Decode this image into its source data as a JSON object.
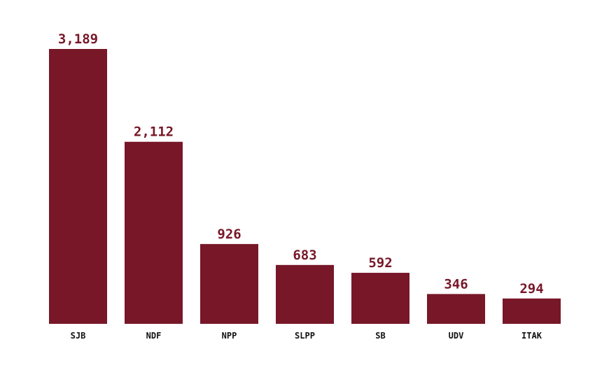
{
  "chart_data": {
    "type": "bar",
    "categories": [
      "SJB",
      "NDF",
      "NPP",
      "SLPP",
      "SB",
      "UDV",
      "ITAK"
    ],
    "values": [
      3189,
      2112,
      926,
      683,
      592,
      346,
      294
    ],
    "value_labels": [
      "3,189",
      "2,112",
      "926",
      "683",
      "592",
      "346",
      "294"
    ],
    "title": "",
    "xlabel": "",
    "ylabel": "",
    "ylim": [
      0,
      3189
    ],
    "grid": false,
    "legend": "none",
    "bar_color": "#771728",
    "label_color": "#771728"
  }
}
